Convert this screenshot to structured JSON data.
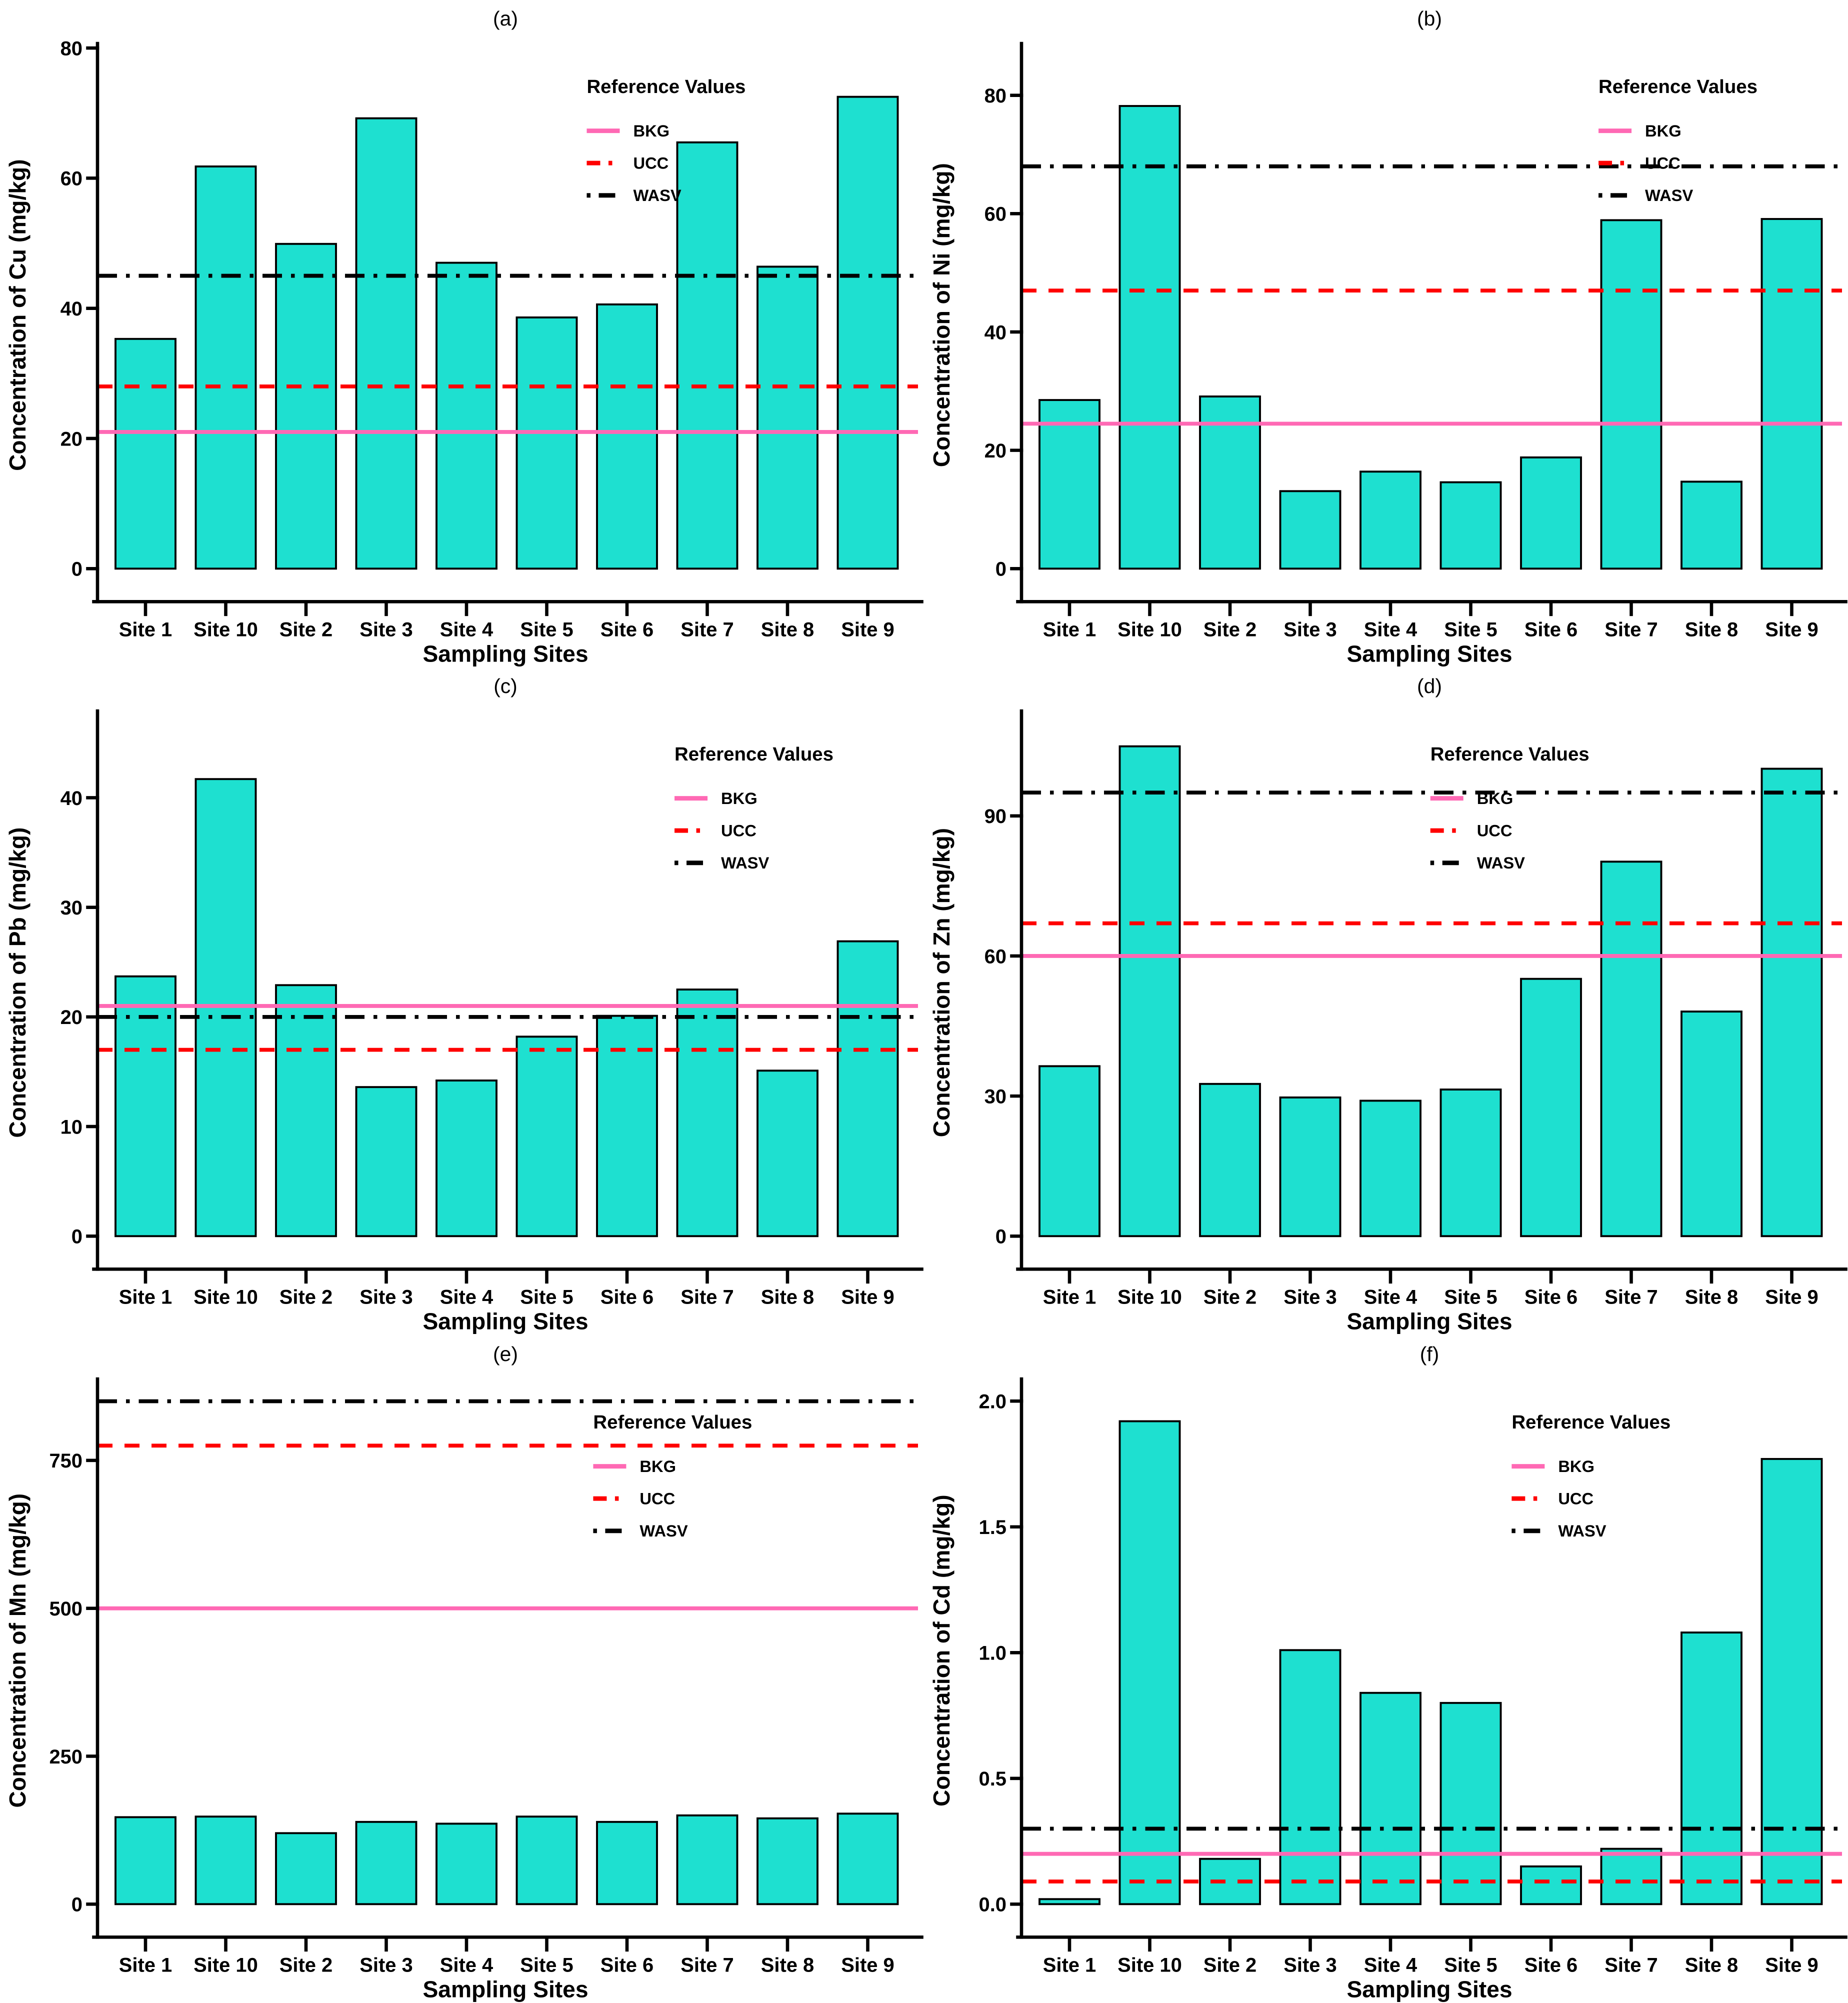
{
  "figure": {
    "background": "#ffffff",
    "bar_fill": "#1EE0D0",
    "bar_stroke": "#000000",
    "axis_color": "#000000"
  },
  "legend": {
    "title": "Reference Values",
    "items": [
      {
        "label": "BKG",
        "color": "#FF69B4",
        "style": "solid"
      },
      {
        "label": "UCC",
        "color": "#FF0000",
        "style": "dashed"
      },
      {
        "label": "WASV",
        "color": "#000000",
        "style": "dashdot"
      }
    ]
  },
  "chart_data": [
    {
      "type": "bar",
      "title": "(a)",
      "ylabel": "Concentration of Cu (mg/kg)",
      "xlabel": "Sampling Sites",
      "categories": [
        "Site 1",
        "Site 10",
        "Site 2",
        "Site 3",
        "Site 4",
        "Site 5",
        "Site 6",
        "Site 7",
        "Site 8",
        "Site 9"
      ],
      "values": [
        35.3,
        61.8,
        49.9,
        69.2,
        47.0,
        38.6,
        40.6,
        65.5,
        46.4,
        72.5
      ],
      "ref_lines": {
        "BKG": 21,
        "UCC": 28,
        "WASV": 45
      },
      "yticks": [
        0,
        20,
        40,
        60,
        80
      ],
      "ytick_labels": [
        "0",
        "20",
        "40",
        "60",
        "80"
      ],
      "ylim": [
        0,
        80
      ],
      "grid": false,
      "legend_position": "upper-right-inside",
      "legend_x": 0.635
    },
    {
      "type": "bar",
      "title": "(b)",
      "ylabel": "Concentration of Ni (mg/kg)",
      "xlabel": "Sampling Sites",
      "categories": [
        "Site 1",
        "Site 10",
        "Site 2",
        "Site 3",
        "Site 4",
        "Site 5",
        "Site 6",
        "Site 7",
        "Site 8",
        "Site 9"
      ],
      "values": [
        28.5,
        78.2,
        29.1,
        13.1,
        16.4,
        14.6,
        18.8,
        58.9,
        14.7,
        59.1
      ],
      "ref_lines": {
        "BKG": 24.5,
        "UCC": 47,
        "WASV": 68
      },
      "yticks": [
        0,
        20,
        40,
        60,
        80
      ],
      "ytick_labels": [
        "0",
        "20",
        "40",
        "60",
        "80"
      ],
      "ylim": [
        0,
        88
      ],
      "grid": false,
      "legend_position": "upper-right-inside",
      "legend_x": 0.73
    },
    {
      "type": "bar",
      "title": "(c)",
      "ylabel": "Concentration of Pb (mg/kg)",
      "xlabel": "Sampling Sites",
      "categories": [
        "Site 1",
        "Site 10",
        "Site 2",
        "Site 3",
        "Site 4",
        "Site 5",
        "Site 6",
        "Site 7",
        "Site 8",
        "Site 9"
      ],
      "values": [
        23.7,
        41.7,
        22.9,
        13.6,
        14.2,
        18.2,
        20.1,
        22.5,
        15.1,
        26.9
      ],
      "ref_lines": {
        "BKG": 21,
        "UCC": 17,
        "WASV": 20
      },
      "yticks": [
        0,
        10,
        20,
        30,
        40
      ],
      "ytick_labels": [
        "0",
        "10",
        "20",
        "30",
        "40"
      ],
      "ylim": [
        0,
        47.5
      ],
      "grid": false,
      "legend_position": "upper-right-inside",
      "legend_x": 0.73
    },
    {
      "type": "bar",
      "title": "(d)",
      "ylabel": "Concentration of Zn (mg/kg)",
      "xlabel": "Sampling Sites",
      "categories": [
        "Site 1",
        "Site 10",
        "Site 2",
        "Site 3",
        "Site 4",
        "Site 5",
        "Site 6",
        "Site 7",
        "Site 8",
        "Site 9"
      ],
      "values": [
        36.4,
        104.9,
        32.6,
        29.7,
        29.0,
        31.4,
        55.1,
        80.2,
        48.1,
        100.1
      ],
      "ref_lines": {
        "BKG": 60,
        "UCC": 67,
        "WASV": 95
      },
      "yticks": [
        0,
        30,
        60,
        90
      ],
      "ytick_labels": [
        "0",
        "30",
        "60",
        "90"
      ],
      "ylim": [
        0,
        111.5
      ],
      "grid": false,
      "legend_position": "upper-right-inside",
      "legend_x": 0.548
    },
    {
      "type": "bar",
      "title": "(e)",
      "ylabel": "Concentration of Mn (mg/kg)",
      "xlabel": "Sampling Sites",
      "categories": [
        "Site 1",
        "Site 10",
        "Site 2",
        "Site 3",
        "Site 4",
        "Site 5",
        "Site 6",
        "Site 7",
        "Site 8",
        "Site 9"
      ],
      "values": [
        147,
        148,
        120,
        139,
        136,
        148,
        139,
        150,
        145,
        153
      ],
      "ref_lines": {
        "BKG": 500,
        "UCC": 775,
        "WASV": 850
      },
      "yticks": [
        0,
        250,
        500,
        750
      ],
      "ytick_labels": [
        "0",
        "250",
        "500",
        "750"
      ],
      "ylim": [
        0,
        880
      ],
      "grid": false,
      "legend_position": "upper-right-inside",
      "legend_x": 0.642
    },
    {
      "type": "bar",
      "title": "(f)",
      "ylabel": "Concentration of Cd (mg/kg)",
      "xlabel": "Sampling Sites",
      "categories": [
        "Site 1",
        "Site 10",
        "Site 2",
        "Site 3",
        "Site 4",
        "Site 5",
        "Site 6",
        "Site 7",
        "Site 8",
        "Site 9"
      ],
      "values": [
        0.02,
        1.92,
        0.18,
        1.01,
        0.84,
        0.8,
        0.15,
        0.22,
        1.08,
        1.77
      ],
      "ref_lines": {
        "BKG": 0.2,
        "UCC": 0.09,
        "WASV": 0.3
      },
      "yticks": [
        0,
        0.5,
        1.0,
        1.5,
        2.0
      ],
      "ytick_labels": [
        "0.0",
        "0.5",
        "1.0",
        "1.5",
        "2.0"
      ],
      "ylim": [
        0,
        2.07
      ],
      "grid": false,
      "legend_position": "upper-right-inside",
      "legend_x": 0.636
    }
  ]
}
